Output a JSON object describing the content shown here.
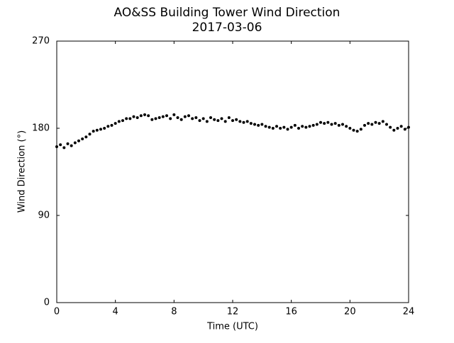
{
  "chart_data": {
    "type": "scatter",
    "title": "AO&SS Building Tower Wind Direction",
    "subtitle": "2017-03-06",
    "x_label": "Time (UTC)",
    "y_label": "Wind Direction (°)",
    "color": "#000000",
    "xlim": [
      0,
      24
    ],
    "xticks": [
      0,
      4,
      8,
      12,
      16,
      20,
      24
    ],
    "ylim": [
      0,
      270
    ],
    "yticks": [
      0,
      90,
      180,
      270
    ],
    "grid": false,
    "x": [
      0,
      0.25,
      0.5,
      0.75,
      1,
      1.25,
      1.5,
      1.75,
      2,
      2.25,
      2.5,
      2.75,
      3,
      3.25,
      3.5,
      3.75,
      4,
      4.25,
      4.5,
      4.75,
      5,
      5.25,
      5.5,
      5.75,
      6,
      6.25,
      6.5,
      6.75,
      7,
      7.25,
      7.5,
      7.75,
      8,
      8.25,
      8.5,
      8.75,
      9,
      9.25,
      9.5,
      9.75,
      10,
      10.25,
      10.5,
      10.75,
      11,
      11.25,
      11.5,
      11.75,
      12,
      12.25,
      12.5,
      12.75,
      13,
      13.25,
      13.5,
      13.75,
      14,
      14.25,
      14.5,
      14.75,
      15,
      15.25,
      15.5,
      15.75,
      16,
      16.25,
      16.5,
      16.75,
      17,
      17.25,
      17.5,
      17.75,
      18,
      18.25,
      18.5,
      18.75,
      19,
      19.25,
      19.5,
      19.75,
      20,
      20.25,
      20.5,
      20.75,
      21,
      21.25,
      21.5,
      21.75,
      22,
      22.25,
      22.5,
      22.75,
      23,
      23.25,
      23.5,
      23.75,
      24
    ],
    "values": [
      161,
      163,
      160,
      164,
      162,
      165,
      167,
      169,
      171,
      174,
      177,
      178,
      179,
      180,
      182,
      183,
      185,
      187,
      188,
      190,
      190,
      192,
      191,
      193,
      194,
      193,
      189,
      190,
      191,
      192,
      193,
      190,
      194,
      191,
      189,
      192,
      193,
      190,
      191,
      188,
      190,
      187,
      191,
      189,
      188,
      190,
      187,
      191,
      188,
      189,
      187,
      186,
      187,
      185,
      184,
      183,
      184,
      182,
      181,
      180,
      182,
      180,
      181,
      179,
      181,
      183,
      180,
      182,
      181,
      182,
      183,
      184,
      186,
      185,
      186,
      184,
      185,
      183,
      184,
      182,
      180,
      178,
      177,
      179,
      183,
      185,
      184,
      186,
      185,
      187,
      184,
      181,
      178,
      180,
      182,
      179,
      181
    ]
  }
}
